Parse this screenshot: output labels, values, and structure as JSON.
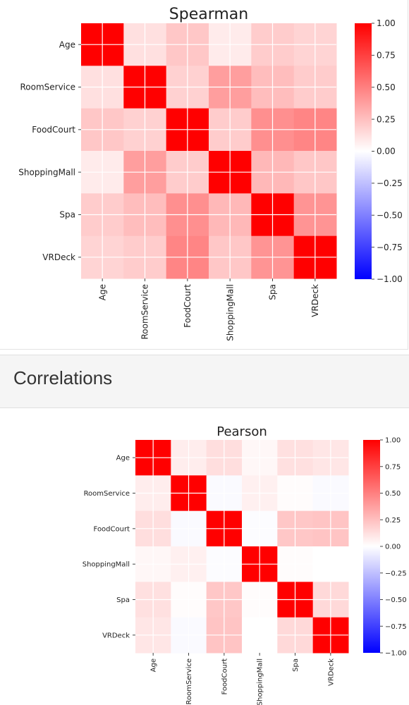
{
  "section": {
    "title": "Correlations"
  },
  "colors": {
    "positive": "#ff0000",
    "neutral": "#ffffff",
    "negative": "#0000ff"
  },
  "chart_data": [
    {
      "type": "heatmap",
      "title": "Spearman",
      "labels": [
        "Age",
        "RoomService",
        "FoodCourt",
        "ShoppingMall",
        "Spa",
        "VRDeck"
      ],
      "matrix": [
        [
          1.0,
          0.12,
          0.22,
          0.08,
          0.2,
          0.17
        ],
        [
          0.12,
          1.0,
          0.18,
          0.38,
          0.26,
          0.2
        ],
        [
          0.22,
          0.18,
          1.0,
          0.2,
          0.44,
          0.48
        ],
        [
          0.08,
          0.38,
          0.2,
          1.0,
          0.28,
          0.22
        ],
        [
          0.2,
          0.26,
          0.44,
          0.28,
          1.0,
          0.42
        ],
        [
          0.17,
          0.2,
          0.48,
          0.22,
          0.42,
          1.0
        ]
      ],
      "colorscale": "bwr",
      "vmin": -1.0,
      "vmax": 1.0,
      "colorbar_ticks": [
        "1.00",
        "0.75",
        "0.50",
        "0.25",
        "0.00",
        "−0.25",
        "−0.50",
        "−0.75",
        "−1.00"
      ]
    },
    {
      "type": "heatmap",
      "title": "Pearson",
      "labels": [
        "Age",
        "RoomService",
        "FoodCourt",
        "ShoppingMall",
        "Spa",
        "VRDeck"
      ],
      "matrix": [
        [
          1.0,
          0.07,
          0.13,
          0.03,
          0.12,
          0.1
        ],
        [
          0.07,
          1.0,
          -0.02,
          0.06,
          0.01,
          -0.02
        ],
        [
          0.13,
          -0.02,
          1.0,
          -0.01,
          0.22,
          0.23
        ],
        [
          0.03,
          0.06,
          -0.01,
          1.0,
          0.01,
          0.0
        ],
        [
          0.12,
          0.01,
          0.22,
          0.01,
          1.0,
          0.15
        ],
        [
          0.1,
          -0.02,
          0.23,
          0.0,
          0.15,
          1.0
        ]
      ],
      "colorscale": "bwr",
      "vmin": -1.0,
      "vmax": 1.0,
      "colorbar_ticks": [
        "1.00",
        "0.75",
        "0.50",
        "0.25",
        "0.00",
        "−0.25",
        "−0.50",
        "−0.75",
        "−1.00"
      ]
    }
  ]
}
